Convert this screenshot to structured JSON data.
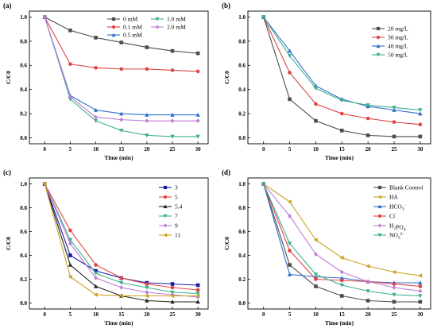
{
  "chart_data": [
    {
      "panel": "(a)",
      "type": "line",
      "xlabel": "Time (min)",
      "ylabel": "C/C0",
      "xlim": [
        -3,
        32
      ],
      "ylim": [
        -0.05,
        1.05
      ],
      "x_ticks": [
        "0",
        "5",
        "10",
        "15",
        "20",
        "25",
        "30"
      ],
      "y_ticks": [
        "0.0",
        "0.2",
        "0.4",
        "0.6",
        "0.8",
        "1.0"
      ],
      "legend_columns": 2,
      "legend_placement": "top-right",
      "x": [
        0,
        5,
        10,
        15,
        20,
        25,
        30
      ],
      "series": [
        {
          "name": "0 mM",
          "color": "#4d4d4d",
          "marker": "square",
          "values": [
            1.0,
            0.89,
            0.83,
            0.79,
            0.75,
            0.72,
            0.7
          ]
        },
        {
          "name": "0.1 mM",
          "color": "#e04343",
          "marker": "circle",
          "values": [
            1.0,
            0.61,
            0.58,
            0.57,
            0.57,
            0.56,
            0.55
          ]
        },
        {
          "name": "0.5 mM",
          "color": "#2f6fc9",
          "marker": "triangle",
          "values": [
            1.0,
            0.35,
            0.23,
            0.2,
            0.19,
            0.19,
            0.19
          ]
        },
        {
          "name": "1.0 mM",
          "color": "#3cb08c",
          "marker": "triangle-down",
          "values": [
            1.0,
            0.32,
            0.14,
            0.06,
            0.02,
            0.01,
            0.01
          ]
        },
        {
          "name": "2.0 mM",
          "color": "#c07ad8",
          "marker": "diamond",
          "values": [
            1.0,
            0.34,
            0.17,
            0.15,
            0.14,
            0.14,
            0.14
          ]
        }
      ]
    },
    {
      "panel": "(b)",
      "type": "line",
      "xlabel": "Time (min)",
      "ylabel": "C/C0",
      "xlim": [
        -3,
        32
      ],
      "ylim": [
        -0.05,
        1.05
      ],
      "x_ticks": [
        "0",
        "5",
        "10",
        "15",
        "20",
        "25",
        "30"
      ],
      "y_ticks": [
        "0.0",
        "0.2",
        "0.4",
        "0.6",
        "0.8",
        "1.0"
      ],
      "legend_columns": 1,
      "legend_placement": "top-right",
      "x": [
        0,
        5,
        10,
        15,
        20,
        25,
        30
      ],
      "series": [
        {
          "name": "20 mg/L",
          "color": "#4d4d4d",
          "marker": "square",
          "values": [
            1.0,
            0.32,
            0.14,
            0.06,
            0.02,
            0.01,
            0.01
          ]
        },
        {
          "name": "30 mg/L",
          "color": "#e04343",
          "marker": "circle",
          "values": [
            1.0,
            0.54,
            0.28,
            0.2,
            0.16,
            0.13,
            0.11
          ]
        },
        {
          "name": "40 mg/L",
          "color": "#2f6fc9",
          "marker": "triangle",
          "values": [
            1.0,
            0.72,
            0.43,
            0.32,
            0.26,
            0.23,
            0.2
          ]
        },
        {
          "name": "50 mg/L",
          "color": "#3cb08c",
          "marker": "triangle-down",
          "values": [
            1.0,
            0.68,
            0.41,
            0.31,
            0.27,
            0.25,
            0.23
          ]
        }
      ]
    },
    {
      "panel": "(c)",
      "type": "line",
      "xlabel": "Time (min)",
      "ylabel": "C/C0",
      "xlim": [
        -3,
        32
      ],
      "ylim": [
        -0.05,
        1.05
      ],
      "x_ticks": [
        "0",
        "5",
        "10",
        "15",
        "20",
        "25",
        "30"
      ],
      "y_ticks": [
        "0.0",
        "0.2",
        "0.4",
        "0.6",
        "0.8",
        "1.0"
      ],
      "legend_columns": 1,
      "legend_placement": "top-right",
      "x": [
        0,
        5,
        10,
        15,
        20,
        25,
        30
      ],
      "series": [
        {
          "name": "3",
          "color": "#1a1aa8",
          "marker": "square",
          "values": [
            1.0,
            0.4,
            0.27,
            0.21,
            0.17,
            0.16,
            0.15
          ]
        },
        {
          "name": "5",
          "color": "#e04343",
          "marker": "circle",
          "values": [
            1.0,
            0.61,
            0.32,
            0.21,
            0.16,
            0.13,
            0.11
          ]
        },
        {
          "name": "5.4",
          "color": "#222222",
          "marker": "triangle",
          "values": [
            1.0,
            0.32,
            0.14,
            0.06,
            0.02,
            0.01,
            0.01
          ]
        },
        {
          "name": "7",
          "color": "#3cb08c",
          "marker": "triangle-down",
          "values": [
            1.0,
            0.53,
            0.25,
            0.17,
            0.13,
            0.09,
            0.08
          ]
        },
        {
          "name": "9",
          "color": "#c07ad8",
          "marker": "diamond",
          "values": [
            1.0,
            0.5,
            0.21,
            0.13,
            0.09,
            0.07,
            0.05
          ]
        },
        {
          "name": "11",
          "color": "#c9a21c",
          "marker": "triangle-left",
          "values": [
            1.0,
            0.22,
            0.07,
            0.06,
            0.06,
            0.06,
            0.06
          ]
        }
      ]
    },
    {
      "panel": "(d)",
      "type": "line",
      "xlabel": "Time (min)",
      "ylabel": "C/C0",
      "xlim": [
        -3,
        32
      ],
      "ylim": [
        -0.05,
        1.05
      ],
      "x_ticks": [
        "0",
        "5",
        "10",
        "15",
        "20",
        "25",
        "30"
      ],
      "y_ticks": [
        "0.0",
        "0.2",
        "0.4",
        "0.6",
        "0.8",
        "1.0"
      ],
      "legend_columns": 1,
      "legend_placement": "top-right",
      "x": [
        0,
        5,
        10,
        15,
        20,
        25,
        30
      ],
      "series": [
        {
          "name": "Blank Control",
          "color": "#4d4d4d",
          "marker": "square",
          "values": [
            1.0,
            0.32,
            0.14,
            0.06,
            0.02,
            0.01,
            0.01
          ]
        },
        {
          "name": "HA",
          "color": "#c9a21c",
          "marker": "triangle-left",
          "values": [
            1.0,
            0.85,
            0.53,
            0.38,
            0.31,
            0.26,
            0.23
          ]
        },
        {
          "name": "HCO3-",
          "color": "#2f6fc9",
          "marker": "triangle",
          "values": [
            1.0,
            0.24,
            0.22,
            0.21,
            0.18,
            0.17,
            0.17
          ]
        },
        {
          "name": "Cl-",
          "color": "#e04343",
          "marker": "circle",
          "values": [
            1.0,
            0.44,
            0.2,
            0.19,
            0.18,
            0.16,
            0.14
          ]
        },
        {
          "name": "H2PO4-",
          "color": "#c07ad8",
          "marker": "diamond",
          "values": [
            1.0,
            0.73,
            0.41,
            0.26,
            0.18,
            0.13,
            0.1
          ]
        },
        {
          "name": "NO32-",
          "color": "#3cb08c",
          "marker": "triangle-down",
          "values": [
            1.0,
            0.5,
            0.24,
            0.15,
            0.1,
            0.07,
            0.06
          ]
        }
      ]
    }
  ]
}
